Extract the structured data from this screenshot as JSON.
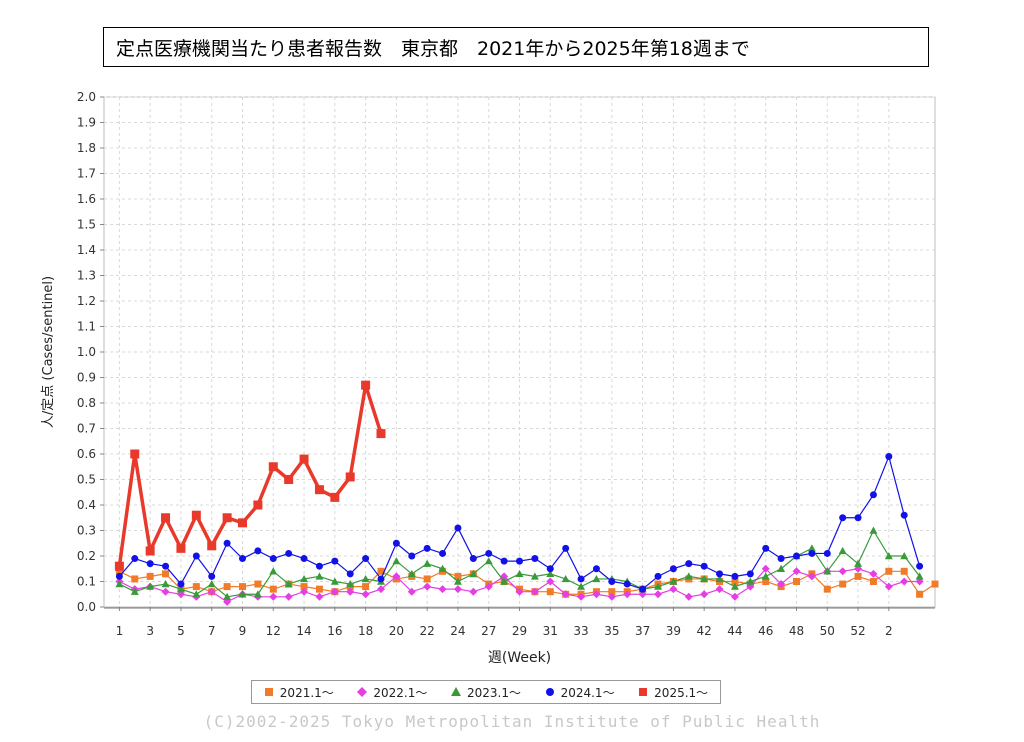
{
  "title": "定点医療機関当たり患者報告数　東京都　2021年から2025年第18週まで",
  "copyright": "(C)2002-2025 Tokyo Metropolitan Institute of Public Health",
  "chart_data": {
    "type": "line",
    "xlabel": "週(Week)",
    "ylabel": "人/定点 (Cases/sentinel)",
    "ylim": [
      0,
      2.0
    ],
    "xlim": [
      0,
      54
    ],
    "y_ticks": [
      "0.0",
      "0.1",
      "0.2",
      "0.3",
      "0.4",
      "0.5",
      "0.6",
      "0.7",
      "0.8",
      "0.9",
      "1.0",
      "1.1",
      "1.2",
      "1.3",
      "1.4",
      "1.5",
      "1.6",
      "1.7",
      "1.8",
      "1.9",
      "2.0"
    ],
    "x_ticks": [
      {
        "v": 1,
        "t": "1"
      },
      {
        "v": 3,
        "t": "3"
      },
      {
        "v": 5,
        "t": "5"
      },
      {
        "v": 7,
        "t": "7"
      },
      {
        "v": 9,
        "t": "9"
      },
      {
        "v": 11,
        "t": "12"
      },
      {
        "v": 13,
        "t": "14"
      },
      {
        "v": 15,
        "t": "16"
      },
      {
        "v": 17,
        "t": "18"
      },
      {
        "v": 19,
        "t": "20"
      },
      {
        "v": 21,
        "t": "22"
      },
      {
        "v": 23,
        "t": "24"
      },
      {
        "v": 25,
        "t": "27"
      },
      {
        "v": 27,
        "t": "29"
      },
      {
        "v": 29,
        "t": "31"
      },
      {
        "v": 31,
        "t": "33"
      },
      {
        "v": 33,
        "t": "35"
      },
      {
        "v": 35,
        "t": "37"
      },
      {
        "v": 37,
        "t": "39"
      },
      {
        "v": 39,
        "t": "42"
      },
      {
        "v": 41,
        "t": "44"
      },
      {
        "v": 43,
        "t": "46"
      },
      {
        "v": 45,
        "t": "48"
      },
      {
        "v": 47,
        "t": "50"
      },
      {
        "v": 49,
        "t": "52"
      },
      {
        "v": 51,
        "t": "2"
      }
    ],
    "grid": true,
    "legend_position": "bottom",
    "series": [
      {
        "name": "2021.1～",
        "color": "#f07c2a",
        "marker": "square",
        "width": 1.2,
        "values": [
          0.14,
          0.11,
          0.12,
          0.13,
          0.07,
          0.08,
          0.06,
          0.08,
          0.08,
          0.09,
          0.07,
          0.09,
          0.08,
          0.07,
          0.06,
          0.08,
          0.08,
          0.14,
          0.11,
          0.12,
          0.11,
          0.14,
          0.12,
          0.13,
          0.09,
          0.1,
          0.07,
          0.06,
          0.06,
          0.05,
          0.05,
          0.06,
          0.06,
          0.06,
          0.07,
          0.09,
          0.1,
          0.11,
          0.11,
          0.1,
          0.1,
          0.09,
          0.1,
          0.08,
          0.1,
          0.13,
          0.07,
          0.09,
          0.12,
          0.1,
          0.14,
          0.14,
          0.05,
          0.09
        ]
      },
      {
        "name": "2022.1～",
        "color": "#e53ee5",
        "marker": "diamond",
        "width": 1.2,
        "values": [
          0.1,
          0.07,
          0.08,
          0.06,
          0.05,
          0.04,
          0.06,
          0.02,
          0.05,
          0.04,
          0.04,
          0.04,
          0.06,
          0.04,
          0.06,
          0.06,
          0.05,
          0.07,
          0.12,
          0.06,
          0.08,
          0.07,
          0.07,
          0.06,
          0.08,
          0.12,
          0.06,
          0.06,
          0.1,
          0.05,
          0.04,
          0.05,
          0.04,
          0.05,
          0.05,
          0.05,
          0.07,
          0.04,
          0.05,
          0.07,
          0.04,
          0.08,
          0.15,
          0.09,
          0.14,
          0.12,
          0.14,
          0.14,
          0.15,
          0.13,
          0.08,
          0.1,
          0.1
        ]
      },
      {
        "name": "2023.1～",
        "color": "#3a9a3a",
        "marker": "triangle",
        "width": 1.2,
        "values": [
          0.09,
          0.06,
          0.08,
          0.09,
          0.07,
          0.05,
          0.09,
          0.04,
          0.05,
          0.05,
          0.14,
          0.09,
          0.11,
          0.12,
          0.1,
          0.09,
          0.11,
          0.1,
          0.18,
          0.13,
          0.17,
          0.15,
          0.1,
          0.13,
          0.18,
          0.1,
          0.13,
          0.12,
          0.13,
          0.11,
          0.08,
          0.11,
          0.11,
          0.1,
          0.07,
          0.08,
          0.1,
          0.12,
          0.11,
          0.11,
          0.08,
          0.1,
          0.12,
          0.15,
          0.2,
          0.23,
          0.14,
          0.22,
          0.17,
          0.3,
          0.2,
          0.2,
          0.12
        ]
      },
      {
        "name": "2024.1～",
        "color": "#1212e8",
        "marker": "circle",
        "width": 1.2,
        "values": [
          0.12,
          0.19,
          0.17,
          0.16,
          0.09,
          0.2,
          0.12,
          0.25,
          0.19,
          0.22,
          0.19,
          0.21,
          0.19,
          0.16,
          0.18,
          0.13,
          0.19,
          0.11,
          0.25,
          0.2,
          0.23,
          0.21,
          0.31,
          0.19,
          0.21,
          0.18,
          0.18,
          0.19,
          0.15,
          0.23,
          0.11,
          0.15,
          0.1,
          0.09,
          0.07,
          0.12,
          0.15,
          0.17,
          0.16,
          0.13,
          0.12,
          0.13,
          0.23,
          0.19,
          0.2,
          0.21,
          0.21,
          0.35,
          0.35,
          0.44,
          0.59,
          0.36,
          0.16
        ]
      },
      {
        "name": "2025.1～",
        "color": "#e8392a",
        "marker": "square",
        "width": 3.5,
        "values": [
          0.16,
          0.6,
          0.22,
          0.35,
          0.23,
          0.36,
          0.24,
          0.35,
          0.33,
          0.4,
          0.55,
          0.5,
          0.58,
          0.46,
          0.43,
          0.51,
          0.87,
          0.68
        ]
      }
    ]
  }
}
